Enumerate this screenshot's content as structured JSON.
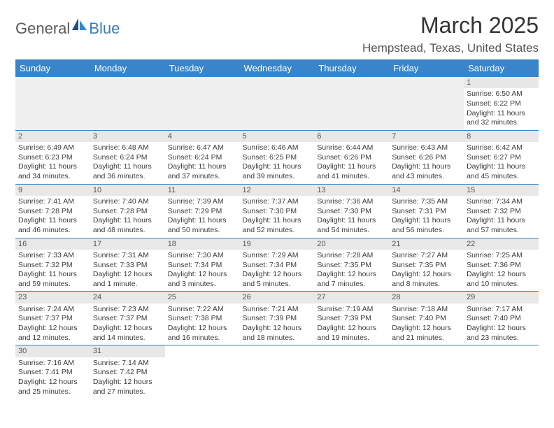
{
  "logo": {
    "text1": "General",
    "text2": "Blue"
  },
  "title": "March 2025",
  "location": "Hempstead, Texas, United States",
  "day_headers": [
    "Sunday",
    "Monday",
    "Tuesday",
    "Wednesday",
    "Thursday",
    "Friday",
    "Saturday"
  ],
  "colors": {
    "header_bg": "#3a85c9",
    "header_text": "#ffffff",
    "daynum_bg": "#e8e8e8",
    "border": "#3a85c9",
    "logo_gray": "#5a5a5a",
    "logo_blue": "#3a7ab8"
  },
  "weeks": [
    [
      {
        "n": "",
        "sr": "",
        "ss": "",
        "dl": ""
      },
      {
        "n": "",
        "sr": "",
        "ss": "",
        "dl": ""
      },
      {
        "n": "",
        "sr": "",
        "ss": "",
        "dl": ""
      },
      {
        "n": "",
        "sr": "",
        "ss": "",
        "dl": ""
      },
      {
        "n": "",
        "sr": "",
        "ss": "",
        "dl": ""
      },
      {
        "n": "",
        "sr": "",
        "ss": "",
        "dl": ""
      },
      {
        "n": "1",
        "sr": "Sunrise: 6:50 AM",
        "ss": "Sunset: 6:22 PM",
        "dl": "Daylight: 11 hours and 32 minutes."
      }
    ],
    [
      {
        "n": "2",
        "sr": "Sunrise: 6:49 AM",
        "ss": "Sunset: 6:23 PM",
        "dl": "Daylight: 11 hours and 34 minutes."
      },
      {
        "n": "3",
        "sr": "Sunrise: 6:48 AM",
        "ss": "Sunset: 6:24 PM",
        "dl": "Daylight: 11 hours and 36 minutes."
      },
      {
        "n": "4",
        "sr": "Sunrise: 6:47 AM",
        "ss": "Sunset: 6:24 PM",
        "dl": "Daylight: 11 hours and 37 minutes."
      },
      {
        "n": "5",
        "sr": "Sunrise: 6:46 AM",
        "ss": "Sunset: 6:25 PM",
        "dl": "Daylight: 11 hours and 39 minutes."
      },
      {
        "n": "6",
        "sr": "Sunrise: 6:44 AM",
        "ss": "Sunset: 6:26 PM",
        "dl": "Daylight: 11 hours and 41 minutes."
      },
      {
        "n": "7",
        "sr": "Sunrise: 6:43 AM",
        "ss": "Sunset: 6:26 PM",
        "dl": "Daylight: 11 hours and 43 minutes."
      },
      {
        "n": "8",
        "sr": "Sunrise: 6:42 AM",
        "ss": "Sunset: 6:27 PM",
        "dl": "Daylight: 11 hours and 45 minutes."
      }
    ],
    [
      {
        "n": "9",
        "sr": "Sunrise: 7:41 AM",
        "ss": "Sunset: 7:28 PM",
        "dl": "Daylight: 11 hours and 46 minutes."
      },
      {
        "n": "10",
        "sr": "Sunrise: 7:40 AM",
        "ss": "Sunset: 7:28 PM",
        "dl": "Daylight: 11 hours and 48 minutes."
      },
      {
        "n": "11",
        "sr": "Sunrise: 7:39 AM",
        "ss": "Sunset: 7:29 PM",
        "dl": "Daylight: 11 hours and 50 minutes."
      },
      {
        "n": "12",
        "sr": "Sunrise: 7:37 AM",
        "ss": "Sunset: 7:30 PM",
        "dl": "Daylight: 11 hours and 52 minutes."
      },
      {
        "n": "13",
        "sr": "Sunrise: 7:36 AM",
        "ss": "Sunset: 7:30 PM",
        "dl": "Daylight: 11 hours and 54 minutes."
      },
      {
        "n": "14",
        "sr": "Sunrise: 7:35 AM",
        "ss": "Sunset: 7:31 PM",
        "dl": "Daylight: 11 hours and 56 minutes."
      },
      {
        "n": "15",
        "sr": "Sunrise: 7:34 AM",
        "ss": "Sunset: 7:32 PM",
        "dl": "Daylight: 11 hours and 57 minutes."
      }
    ],
    [
      {
        "n": "16",
        "sr": "Sunrise: 7:33 AM",
        "ss": "Sunset: 7:32 PM",
        "dl": "Daylight: 11 hours and 59 minutes."
      },
      {
        "n": "17",
        "sr": "Sunrise: 7:31 AM",
        "ss": "Sunset: 7:33 PM",
        "dl": "Daylight: 12 hours and 1 minute."
      },
      {
        "n": "18",
        "sr": "Sunrise: 7:30 AM",
        "ss": "Sunset: 7:34 PM",
        "dl": "Daylight: 12 hours and 3 minutes."
      },
      {
        "n": "19",
        "sr": "Sunrise: 7:29 AM",
        "ss": "Sunset: 7:34 PM",
        "dl": "Daylight: 12 hours and 5 minutes."
      },
      {
        "n": "20",
        "sr": "Sunrise: 7:28 AM",
        "ss": "Sunset: 7:35 PM",
        "dl": "Daylight: 12 hours and 7 minutes."
      },
      {
        "n": "21",
        "sr": "Sunrise: 7:27 AM",
        "ss": "Sunset: 7:35 PM",
        "dl": "Daylight: 12 hours and 8 minutes."
      },
      {
        "n": "22",
        "sr": "Sunrise: 7:25 AM",
        "ss": "Sunset: 7:36 PM",
        "dl": "Daylight: 12 hours and 10 minutes."
      }
    ],
    [
      {
        "n": "23",
        "sr": "Sunrise: 7:24 AM",
        "ss": "Sunset: 7:37 PM",
        "dl": "Daylight: 12 hours and 12 minutes."
      },
      {
        "n": "24",
        "sr": "Sunrise: 7:23 AM",
        "ss": "Sunset: 7:37 PM",
        "dl": "Daylight: 12 hours and 14 minutes."
      },
      {
        "n": "25",
        "sr": "Sunrise: 7:22 AM",
        "ss": "Sunset: 7:38 PM",
        "dl": "Daylight: 12 hours and 16 minutes."
      },
      {
        "n": "26",
        "sr": "Sunrise: 7:21 AM",
        "ss": "Sunset: 7:39 PM",
        "dl": "Daylight: 12 hours and 18 minutes."
      },
      {
        "n": "27",
        "sr": "Sunrise: 7:19 AM",
        "ss": "Sunset: 7:39 PM",
        "dl": "Daylight: 12 hours and 19 minutes."
      },
      {
        "n": "28",
        "sr": "Sunrise: 7:18 AM",
        "ss": "Sunset: 7:40 PM",
        "dl": "Daylight: 12 hours and 21 minutes."
      },
      {
        "n": "29",
        "sr": "Sunrise: 7:17 AM",
        "ss": "Sunset: 7:40 PM",
        "dl": "Daylight: 12 hours and 23 minutes."
      }
    ],
    [
      {
        "n": "30",
        "sr": "Sunrise: 7:16 AM",
        "ss": "Sunset: 7:41 PM",
        "dl": "Daylight: 12 hours and 25 minutes."
      },
      {
        "n": "31",
        "sr": "Sunrise: 7:14 AM",
        "ss": "Sunset: 7:42 PM",
        "dl": "Daylight: 12 hours and 27 minutes."
      },
      {
        "n": "",
        "sr": "",
        "ss": "",
        "dl": ""
      },
      {
        "n": "",
        "sr": "",
        "ss": "",
        "dl": ""
      },
      {
        "n": "",
        "sr": "",
        "ss": "",
        "dl": ""
      },
      {
        "n": "",
        "sr": "",
        "ss": "",
        "dl": ""
      },
      {
        "n": "",
        "sr": "",
        "ss": "",
        "dl": ""
      }
    ]
  ]
}
